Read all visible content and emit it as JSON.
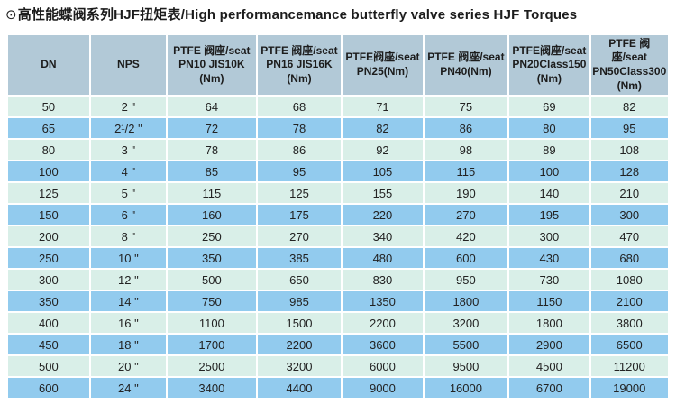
{
  "title": {
    "icon": "⊙",
    "text": "高性能蝶阀系列HJF扭矩表/High performancemance butterfly valve series HJF Torques"
  },
  "colors": {
    "header_bg": "#b2c9d7",
    "row_light": "#d9efe8",
    "row_blue": "#92cbee",
    "text_dark": "#1c1c1c",
    "page_bg": "#ffffff"
  },
  "table": {
    "headers": [
      "DN",
      "NPS",
      "PTFE 阀座/seat\nPN10 JIS10K\n(Nm)",
      "PTFE 阀座/seat\nPN16 JIS16K\n(Nm)",
      "PTFE阀座/seat\nPN25(Nm)",
      "PTFE 阀座/seat\nPN40(Nm)",
      "PTFE阀座/seat\nPN20Class150\n(Nm)",
      "PTFE 阀座/seat\nPN50Class300\n(Nm)"
    ],
    "rows": [
      [
        "50",
        "2 \"",
        "64",
        "68",
        "71",
        "75",
        "69",
        "82"
      ],
      [
        "65",
        "2¹/2 \"",
        "72",
        "78",
        "82",
        "86",
        "80",
        "95"
      ],
      [
        "80",
        "3 \"",
        "78",
        "86",
        "92",
        "98",
        "89",
        "108"
      ],
      [
        "100",
        "4 \"",
        "85",
        "95",
        "105",
        "115",
        "100",
        "128"
      ],
      [
        "125",
        "5 \"",
        "115",
        "125",
        "155",
        "190",
        "140",
        "210"
      ],
      [
        "150",
        "6 \"",
        "160",
        "175",
        "220",
        "270",
        "195",
        "300"
      ],
      [
        "200",
        "8 \"",
        "250",
        "270",
        "340",
        "420",
        "300",
        "470"
      ],
      [
        "250",
        "10 \"",
        "350",
        "385",
        "480",
        "600",
        "430",
        "680"
      ],
      [
        "300",
        "12 \"",
        "500",
        "650",
        "830",
        "950",
        "730",
        "1080"
      ],
      [
        "350",
        "14 \"",
        "750",
        "985",
        "1350",
        "1800",
        "1150",
        "2100"
      ],
      [
        "400",
        "16 \"",
        "1100",
        "1500",
        "2200",
        "3200",
        "1800",
        "3800"
      ],
      [
        "450",
        "18 \"",
        "1700",
        "2200",
        "3600",
        "5500",
        "2900",
        "6500"
      ],
      [
        "500",
        "20 \"",
        "2500",
        "3200",
        "6000",
        "9500",
        "4500",
        "11200"
      ],
      [
        "600",
        "24 \"",
        "3400",
        "4400",
        "9000",
        "16000",
        "6700",
        "19000"
      ]
    ]
  }
}
